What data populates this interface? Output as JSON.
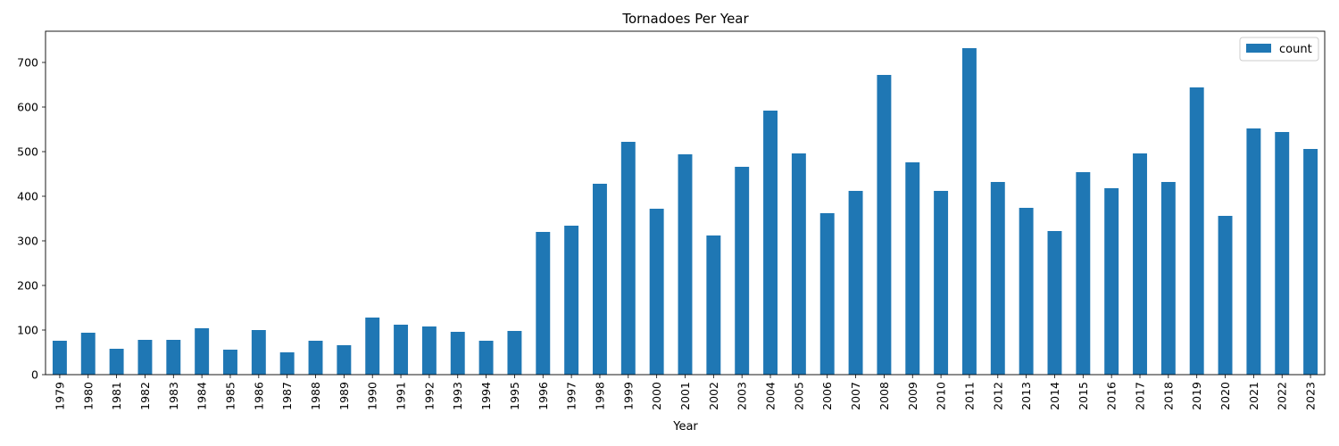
{
  "chart_data": {
    "type": "bar",
    "title": "Tornadoes Per Year",
    "xlabel": "Year",
    "ylabel": "",
    "ylim": [
      0,
      770
    ],
    "yticks": [
      0,
      100,
      200,
      300,
      400,
      500,
      600,
      700
    ],
    "grid": false,
    "legend_position": "top-right",
    "bar_color": "#1f77b4",
    "categories": [
      "1979",
      "1980",
      "1981",
      "1982",
      "1983",
      "1984",
      "1985",
      "1986",
      "1987",
      "1988",
      "1989",
      "1990",
      "1991",
      "1992",
      "1993",
      "1994",
      "1995",
      "1996",
      "1997",
      "1998",
      "1999",
      "2000",
      "2001",
      "2002",
      "2003",
      "2004",
      "2005",
      "2006",
      "2007",
      "2008",
      "2009",
      "2010",
      "2011",
      "2012",
      "2013",
      "2014",
      "2015",
      "2016",
      "2017",
      "2018",
      "2019",
      "2020",
      "2021",
      "2022",
      "2023"
    ],
    "series": [
      {
        "name": "count",
        "values": [
          76,
          94,
          58,
          78,
          78,
          104,
          56,
          100,
          50,
          76,
          66,
          128,
          112,
          108,
          96,
          76,
          98,
          320,
          334,
          428,
          522,
          372,
          494,
          312,
          466,
          592,
          496,
          362,
          412,
          672,
          476,
          412,
          732,
          432,
          374,
          322,
          454,
          418,
          496,
          432,
          644,
          356,
          552,
          544,
          506
        ]
      }
    ]
  }
}
